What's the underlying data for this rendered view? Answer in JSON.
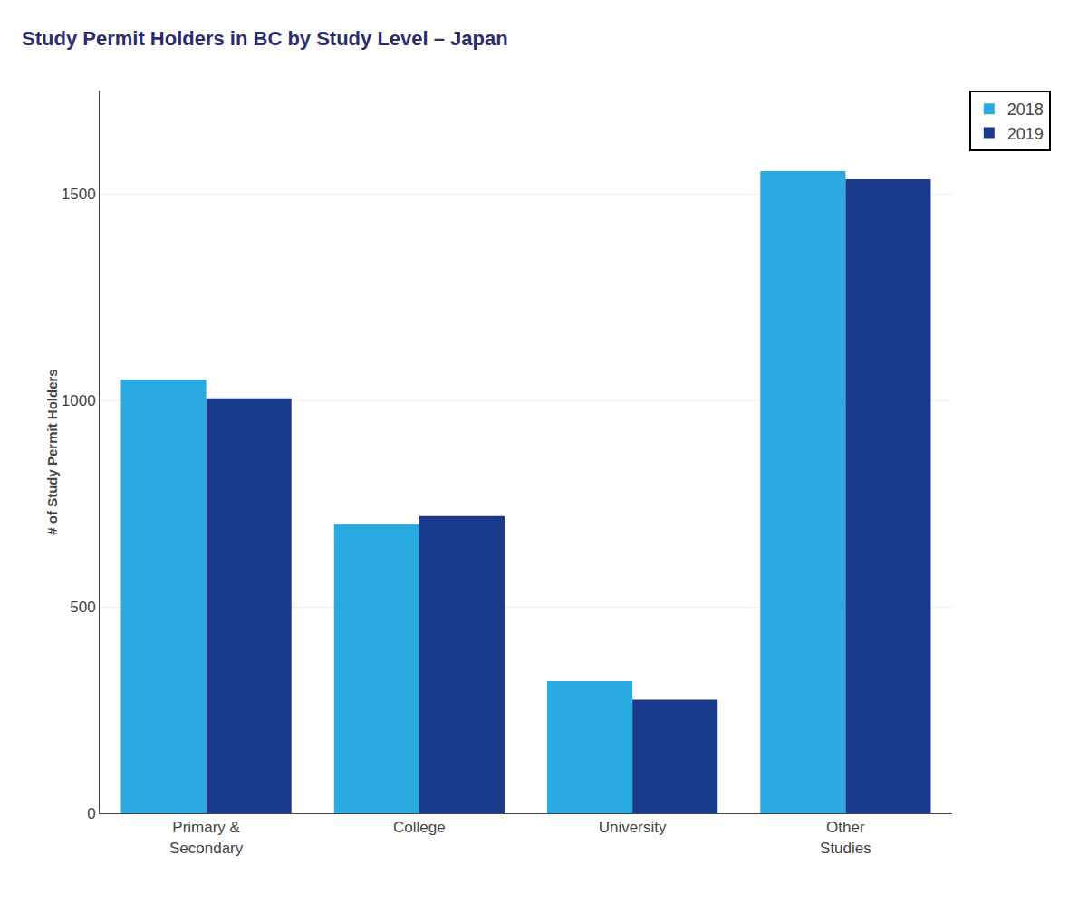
{
  "chart_data": {
    "type": "bar",
    "title": "Study Permit Holders in BC by Study Level – Japan",
    "categories": [
      "Primary &\nSecondary",
      "College",
      "University",
      "Other\nStudies"
    ],
    "series": [
      {
        "name": "2018",
        "color": "#29ABE2",
        "values": [
          1050,
          700,
          320,
          1555
        ]
      },
      {
        "name": "2019",
        "color": "#1A3A8C",
        "values": [
          1005,
          720,
          275,
          1535
        ]
      }
    ],
    "ylabel": "# of Study Permit Holders",
    "ylim": [
      0,
      1750
    ],
    "yticks": [
      0,
      500,
      1000,
      1500
    ],
    "grid": true,
    "legend": "upper right"
  }
}
